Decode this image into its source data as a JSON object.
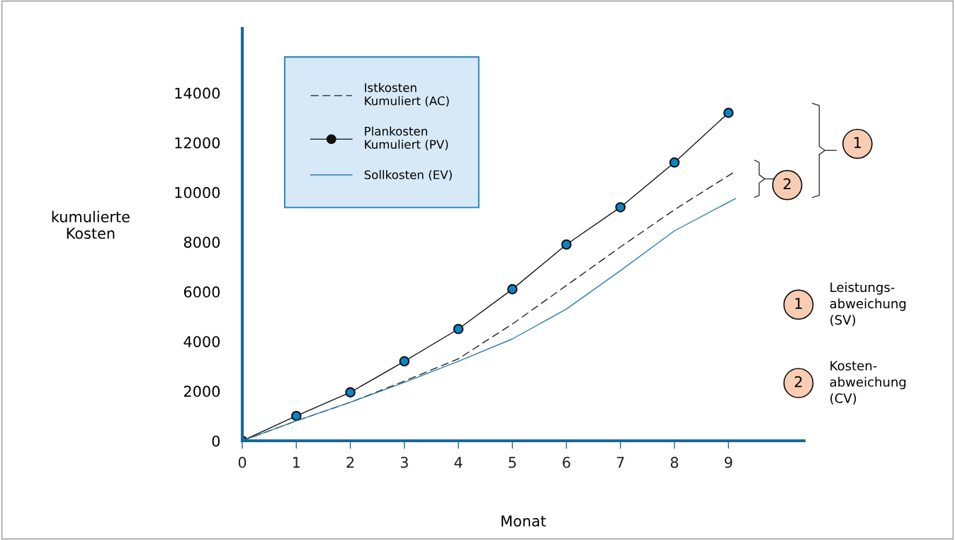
{
  "chart_data": {
    "type": "line",
    "xlabel": "Monat",
    "ylabel": "kumulierte\nKosten",
    "xlim": [
      0,
      10.4
    ],
    "ylim": [
      0,
      16600
    ],
    "xticks": [
      0,
      1,
      2,
      3,
      4,
      5,
      6,
      7,
      8,
      9
    ],
    "yticks": [
      0,
      2000,
      4000,
      6000,
      8000,
      10000,
      12000,
      14000
    ],
    "grid": false,
    "legend": "top left",
    "series": [
      {
        "name": "Istkosten\nKumuliert (AC)",
        "color": "#222222",
        "line_style": "dashed",
        "marker": "none",
        "x": [
          0,
          1,
          2,
          3,
          4,
          5,
          6,
          7,
          8,
          9.13
        ],
        "values": [
          0,
          800,
          1550,
          2400,
          3300,
          4700,
          6250,
          7800,
          9300,
          10850
        ]
      },
      {
        "name": "Plankosten\nKumuliert (PV)",
        "color": "#0a84c6",
        "line_style": "solid",
        "marker": "circle",
        "x": [
          0,
          1,
          2,
          3,
          4,
          5,
          6,
          7,
          8,
          9
        ],
        "values": [
          0,
          1000,
          1950,
          3200,
          4500,
          6100,
          7900,
          9400,
          11200,
          13200
        ]
      },
      {
        "name": "Sollkosten (EV)",
        "color": "#2a7fb0",
        "line_style": "solid",
        "marker": "none",
        "x": [
          0,
          1,
          2,
          3,
          4,
          5,
          6,
          7,
          8,
          9.13
        ],
        "values": [
          0,
          800,
          1550,
          2350,
          3200,
          4100,
          5300,
          6850,
          8450,
          9750
        ]
      }
    ],
    "annotations": [
      "1",
      "2",
      "1",
      "Leistungs-\nabweichung\n(SV)",
      "2",
      "Kosten-\nabweichung\n(CV)"
    ]
  }
}
